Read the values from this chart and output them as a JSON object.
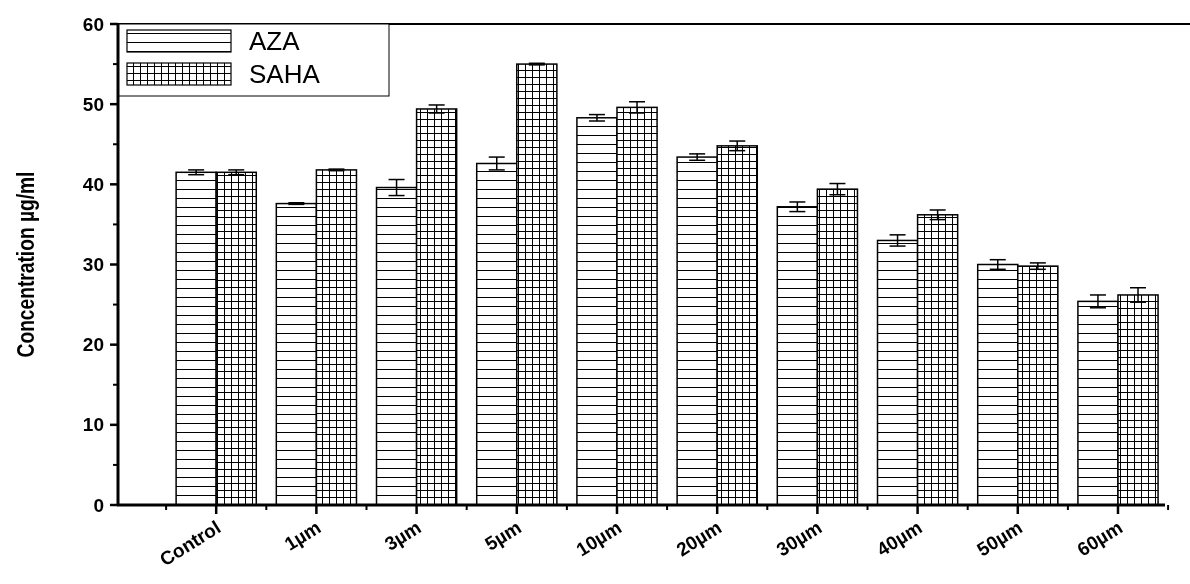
{
  "chart_data": {
    "type": "bar",
    "ylabel": "Concentration µg/ml",
    "categories": [
      "Control",
      "1µm",
      "3µm",
      "5µm",
      "10µm",
      "20µm",
      "30µm",
      "40µm",
      "50µm",
      "60µm"
    ],
    "series": [
      {
        "name": "AZA",
        "color": "#000000",
        "values": [
          41.5,
          37.6,
          39.6,
          42.6,
          48.3,
          43.4,
          37.2,
          33.0,
          30.0,
          25.4
        ],
        "errors": [
          0.3,
          0.1,
          1.0,
          0.8,
          0.4,
          0.4,
          0.6,
          0.7,
          0.6,
          0.8
        ]
      },
      {
        "name": "SAHA",
        "color": "#000000",
        "values": [
          41.5,
          41.8,
          49.4,
          55.0,
          49.6,
          44.8,
          39.4,
          36.2,
          29.8,
          26.2
        ],
        "errors": [
          0.3,
          0.1,
          0.5,
          0.1,
          0.7,
          0.6,
          0.7,
          0.6,
          0.4,
          0.9
        ]
      }
    ],
    "ylim": [
      0,
      60
    ],
    "yticks": [
      0,
      10,
      20,
      30,
      40,
      50,
      60
    ],
    "legend": "top left"
  }
}
